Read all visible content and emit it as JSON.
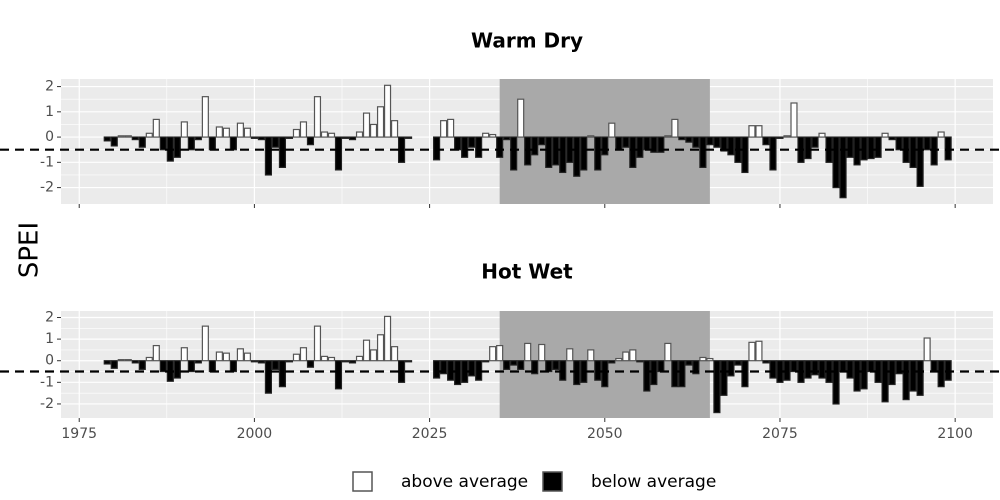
{
  "y_label": "SPEI",
  "legend": [
    {
      "label": "above average",
      "color": "#ffffff"
    },
    {
      "label": "below average",
      "color": "#000000"
    }
  ],
  "chart_data": [
    {
      "type": "bar",
      "title": "Warm Dry",
      "x": [
        1979,
        1980,
        1981,
        1982,
        1983,
        1984,
        1985,
        1986,
        1987,
        1988,
        1989,
        1990,
        1991,
        1992,
        1993,
        1994,
        1995,
        1996,
        1997,
        1998,
        1999,
        2000,
        2001,
        2002,
        2003,
        2004,
        2005,
        2006,
        2007,
        2008,
        2009,
        2010,
        2011,
        2012,
        2013,
        2014,
        2015,
        2016,
        2017,
        2018,
        2019,
        2020,
        2021,
        2022,
        2026,
        2027,
        2028,
        2029,
        2030,
        2031,
        2032,
        2033,
        2034,
        2035,
        2036,
        2037,
        2038,
        2039,
        2040,
        2041,
        2042,
        2043,
        2044,
        2045,
        2046,
        2047,
        2048,
        2049,
        2050,
        2051,
        2052,
        2053,
        2054,
        2055,
        2056,
        2057,
        2058,
        2059,
        2060,
        2061,
        2062,
        2063,
        2064,
        2065,
        2066,
        2067,
        2068,
        2069,
        2070,
        2071,
        2072,
        2073,
        2074,
        2075,
        2076,
        2077,
        2078,
        2079,
        2080,
        2081,
        2082,
        2083,
        2084,
        2085,
        2086,
        2087,
        2088,
        2089,
        2090,
        2091,
        2092,
        2093,
        2094,
        2095,
        2096,
        2097,
        2098,
        2099
      ],
      "values": [
        -0.15,
        -0.35,
        0.05,
        0.05,
        -0.1,
        -0.4,
        0.15,
        0.7,
        -0.5,
        -0.95,
        -0.8,
        0.6,
        -0.5,
        -0.1,
        1.6,
        -0.5,
        0.4,
        0.35,
        -0.5,
        0.55,
        0.35,
        -0.05,
        -0.1,
        -1.5,
        -0.4,
        -1.2,
        -0.05,
        0.3,
        0.6,
        -0.3,
        1.6,
        0.2,
        0.15,
        -1.3,
        -0.05,
        -0.1,
        0.2,
        0.95,
        0.5,
        1.2,
        2.05,
        0.65,
        -1.0,
        -0.05,
        -0.9,
        0.65,
        0.7,
        -0.5,
        -0.8,
        -0.4,
        -0.8,
        0.15,
        0.1,
        -0.8,
        -0.1,
        -1.3,
        1.5,
        -1.1,
        -0.7,
        -0.3,
        -1.2,
        -1.1,
        -1.4,
        -1.0,
        -1.55,
        -1.3,
        0.05,
        -1.3,
        -0.7,
        0.55,
        -0.5,
        -0.4,
        -1.2,
        -0.8,
        -0.5,
        -0.6,
        -0.6,
        0.05,
        0.7,
        -0.1,
        -0.2,
        -0.4,
        -1.2,
        -0.3,
        -0.4,
        -0.55,
        -0.7,
        -1.0,
        -1.4,
        0.45,
        0.45,
        -0.3,
        -1.3,
        -0.05,
        0.05,
        1.35,
        -1.0,
        -0.85,
        -0.4,
        0.15,
        -1.0,
        -2.0,
        -2.4,
        -0.8,
        -1.1,
        -0.9,
        -0.85,
        -0.8,
        0.15,
        -0.1,
        -0.5,
        -1.0,
        -1.2,
        -1.95,
        -0.5,
        -1.1,
        0.2,
        -0.9
      ],
      "xlim": [
        1972.4,
        2105.4
      ],
      "xticks": [
        1975,
        2000,
        2025,
        2050,
        2075,
        2100
      ],
      "ylim": [
        -2.65,
        2.3
      ],
      "yticks": [
        2,
        1,
        0,
        -1,
        -2
      ],
      "reference_line": -0.5,
      "highlight": [
        2035,
        2065
      ],
      "grid": true
    },
    {
      "type": "bar",
      "title": "Hot Wet",
      "x": [
        1979,
        1980,
        1981,
        1982,
        1983,
        1984,
        1985,
        1986,
        1987,
        1988,
        1989,
        1990,
        1991,
        1992,
        1993,
        1994,
        1995,
        1996,
        1997,
        1998,
        1999,
        2000,
        2001,
        2002,
        2003,
        2004,
        2005,
        2006,
        2007,
        2008,
        2009,
        2010,
        2011,
        2012,
        2013,
        2014,
        2015,
        2016,
        2017,
        2018,
        2019,
        2020,
        2021,
        2022,
        2026,
        2027,
        2028,
        2029,
        2030,
        2031,
        2032,
        2033,
        2034,
        2035,
        2036,
        2037,
        2038,
        2039,
        2040,
        2041,
        2042,
        2043,
        2044,
        2045,
        2046,
        2047,
        2048,
        2049,
        2050,
        2051,
        2052,
        2053,
        2054,
        2055,
        2056,
        2057,
        2058,
        2059,
        2060,
        2061,
        2062,
        2063,
        2064,
        2065,
        2066,
        2067,
        2068,
        2069,
        2070,
        2071,
        2072,
        2073,
        2074,
        2075,
        2076,
        2077,
        2078,
        2079,
        2080,
        2081,
        2082,
        2083,
        2084,
        2085,
        2086,
        2087,
        2088,
        2089,
        2090,
        2091,
        2092,
        2093,
        2094,
        2095,
        2096,
        2097,
        2098,
        2099
      ],
      "values": [
        -0.15,
        -0.35,
        0.05,
        0.05,
        -0.1,
        -0.4,
        0.15,
        0.7,
        -0.5,
        -0.95,
        -0.8,
        0.6,
        -0.5,
        -0.1,
        1.6,
        -0.5,
        0.4,
        0.35,
        -0.5,
        0.55,
        0.35,
        -0.05,
        -0.1,
        -1.5,
        -0.4,
        -1.2,
        -0.05,
        0.3,
        0.6,
        -0.3,
        1.6,
        0.2,
        0.15,
        -1.3,
        -0.05,
        -0.1,
        0.2,
        0.95,
        0.5,
        1.2,
        2.05,
        0.65,
        -1.0,
        -0.05,
        -0.8,
        -0.6,
        -0.9,
        -1.1,
        -1.0,
        -0.7,
        -0.9,
        -0.05,
        0.65,
        0.7,
        -0.4,
        -0.2,
        -0.4,
        0.8,
        -0.6,
        0.75,
        -0.5,
        -0.4,
        -0.9,
        0.55,
        -1.1,
        -1.0,
        0.5,
        -0.9,
        -1.2,
        -0.1,
        0.1,
        0.4,
        0.5,
        -0.05,
        -1.4,
        -1.1,
        -0.5,
        0.8,
        -1.2,
        -1.2,
        -0.2,
        -0.6,
        0.15,
        0.1,
        -2.4,
        -1.6,
        -0.7,
        -0.2,
        -1.2,
        0.85,
        0.9,
        -0.1,
        -0.8,
        -1.0,
        -0.9,
        -0.5,
        -1.0,
        -0.8,
        -0.65,
        -0.8,
        -1.0,
        -2.0,
        -0.5,
        -0.8,
        -1.4,
        -1.3,
        -0.5,
        -1.0,
        -1.9,
        -1.1,
        -0.6,
        -1.8,
        -1.4,
        -1.6,
        1.05,
        -0.5,
        -1.2,
        -0.9
      ],
      "xlim": [
        1972.4,
        2105.4
      ],
      "xticks": [
        1975,
        2000,
        2025,
        2050,
        2075,
        2100
      ],
      "ylim": [
        -2.65,
        2.3
      ],
      "yticks": [
        2,
        1,
        0,
        -1,
        -2
      ],
      "reference_line": -0.5,
      "highlight": [
        2035,
        2065
      ],
      "grid": true
    }
  ]
}
